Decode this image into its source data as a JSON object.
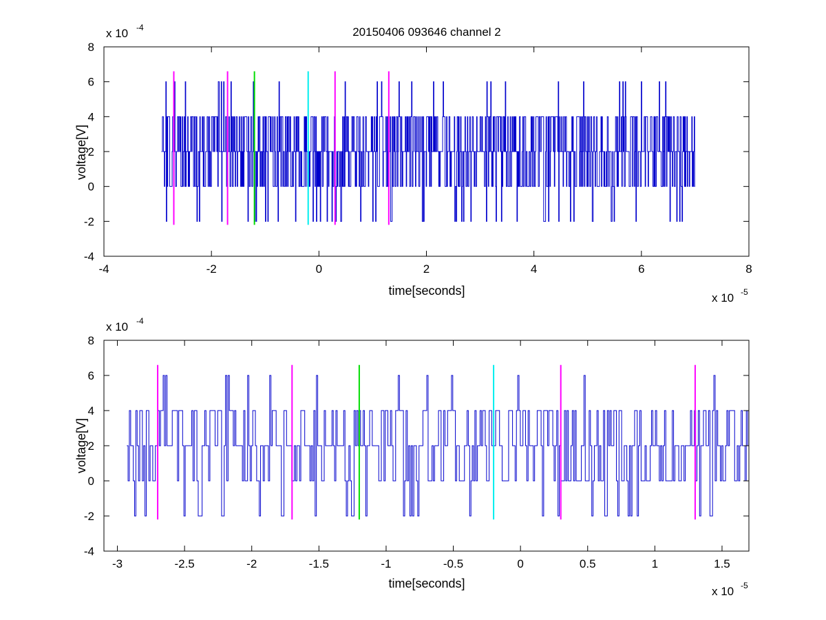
{
  "chart_data": [
    {
      "type": "line",
      "title": "20150406 093646 channel 2",
      "xlabel": "time[seconds]",
      "ylabel": "voltage[V]",
      "xlim": [
        -4,
        8
      ],
      "ylim": [
        -4,
        8
      ],
      "x_ticks": [
        -4,
        -2,
        0,
        2,
        4,
        6,
        8
      ],
      "y_ticks": [
        -4,
        -2,
        0,
        2,
        4,
        6,
        8
      ],
      "x_ticks_text": [
        "-4",
        "-2",
        "0",
        "2",
        "4",
        "6",
        "8"
      ],
      "y_ticks_text": [
        "-4",
        "-2",
        "0",
        "2",
        "4",
        "6",
        "8"
      ],
      "x_exponent": {
        "base": "x 10",
        "power": "-5"
      },
      "y_exponent": {
        "base": "x 10",
        "power": "-4"
      },
      "grid": false,
      "signal": {
        "color": "#0000cc",
        "x_start": -2.93,
        "x_end": 7.0,
        "samples": 1100,
        "seed": 7,
        "levels": [
          -2,
          0,
          2,
          4,
          6
        ],
        "baseline": 2
      },
      "markers": [
        {
          "x": -2.7,
          "color": "#ff00ff"
        },
        {
          "x": -1.7,
          "color": "#ff00ff"
        },
        {
          "x": -1.2,
          "color": "#00dd00"
        },
        {
          "x": -0.2,
          "color": "#00eeee"
        },
        {
          "x": 0.3,
          "color": "#ff00ff"
        },
        {
          "x": 1.3,
          "color": "#ff00ff"
        }
      ],
      "marker_ylim": [
        -2.2,
        6.6
      ]
    },
    {
      "type": "line",
      "title": "",
      "xlabel": "time[seconds]",
      "ylabel": "voltage[V]",
      "xlim": [
        -3.1,
        1.7
      ],
      "ylim": [
        -4,
        8
      ],
      "x_ticks": [
        -3,
        -2.5,
        -2,
        -1.5,
        -1,
        -0.5,
        0,
        0.5,
        1,
        1.5
      ],
      "y_ticks": [
        -4,
        -2,
        0,
        2,
        4,
        6,
        8
      ],
      "x_ticks_text": [
        "-3",
        "-2.5",
        "-2",
        "-1.5",
        "-1",
        "-0.5",
        "0",
        "0.5",
        "1",
        "1.5"
      ],
      "y_ticks_text": [
        "-4",
        "-2",
        "0",
        "2",
        "4",
        "6",
        "8"
      ],
      "x_exponent": {
        "base": "x 10",
        "power": "-5"
      },
      "y_exponent": {
        "base": "x 10",
        "power": "-4"
      },
      "grid": false,
      "signal": {
        "color": "#0000cc",
        "x_start": -2.93,
        "x_end": 1.7,
        "samples": 480,
        "seed": 13,
        "levels": [
          -2,
          0,
          2,
          4,
          6
        ],
        "baseline": 2
      },
      "markers": [
        {
          "x": -2.7,
          "color": "#ff00ff"
        },
        {
          "x": -1.7,
          "color": "#ff00ff"
        },
        {
          "x": -1.2,
          "color": "#00dd00"
        },
        {
          "x": -0.2,
          "color": "#00eeee"
        },
        {
          "x": 0.3,
          "color": "#ff00ff"
        },
        {
          "x": 1.3,
          "color": "#ff00ff"
        }
      ],
      "marker_ylim": [
        -2.2,
        6.6
      ]
    }
  ]
}
